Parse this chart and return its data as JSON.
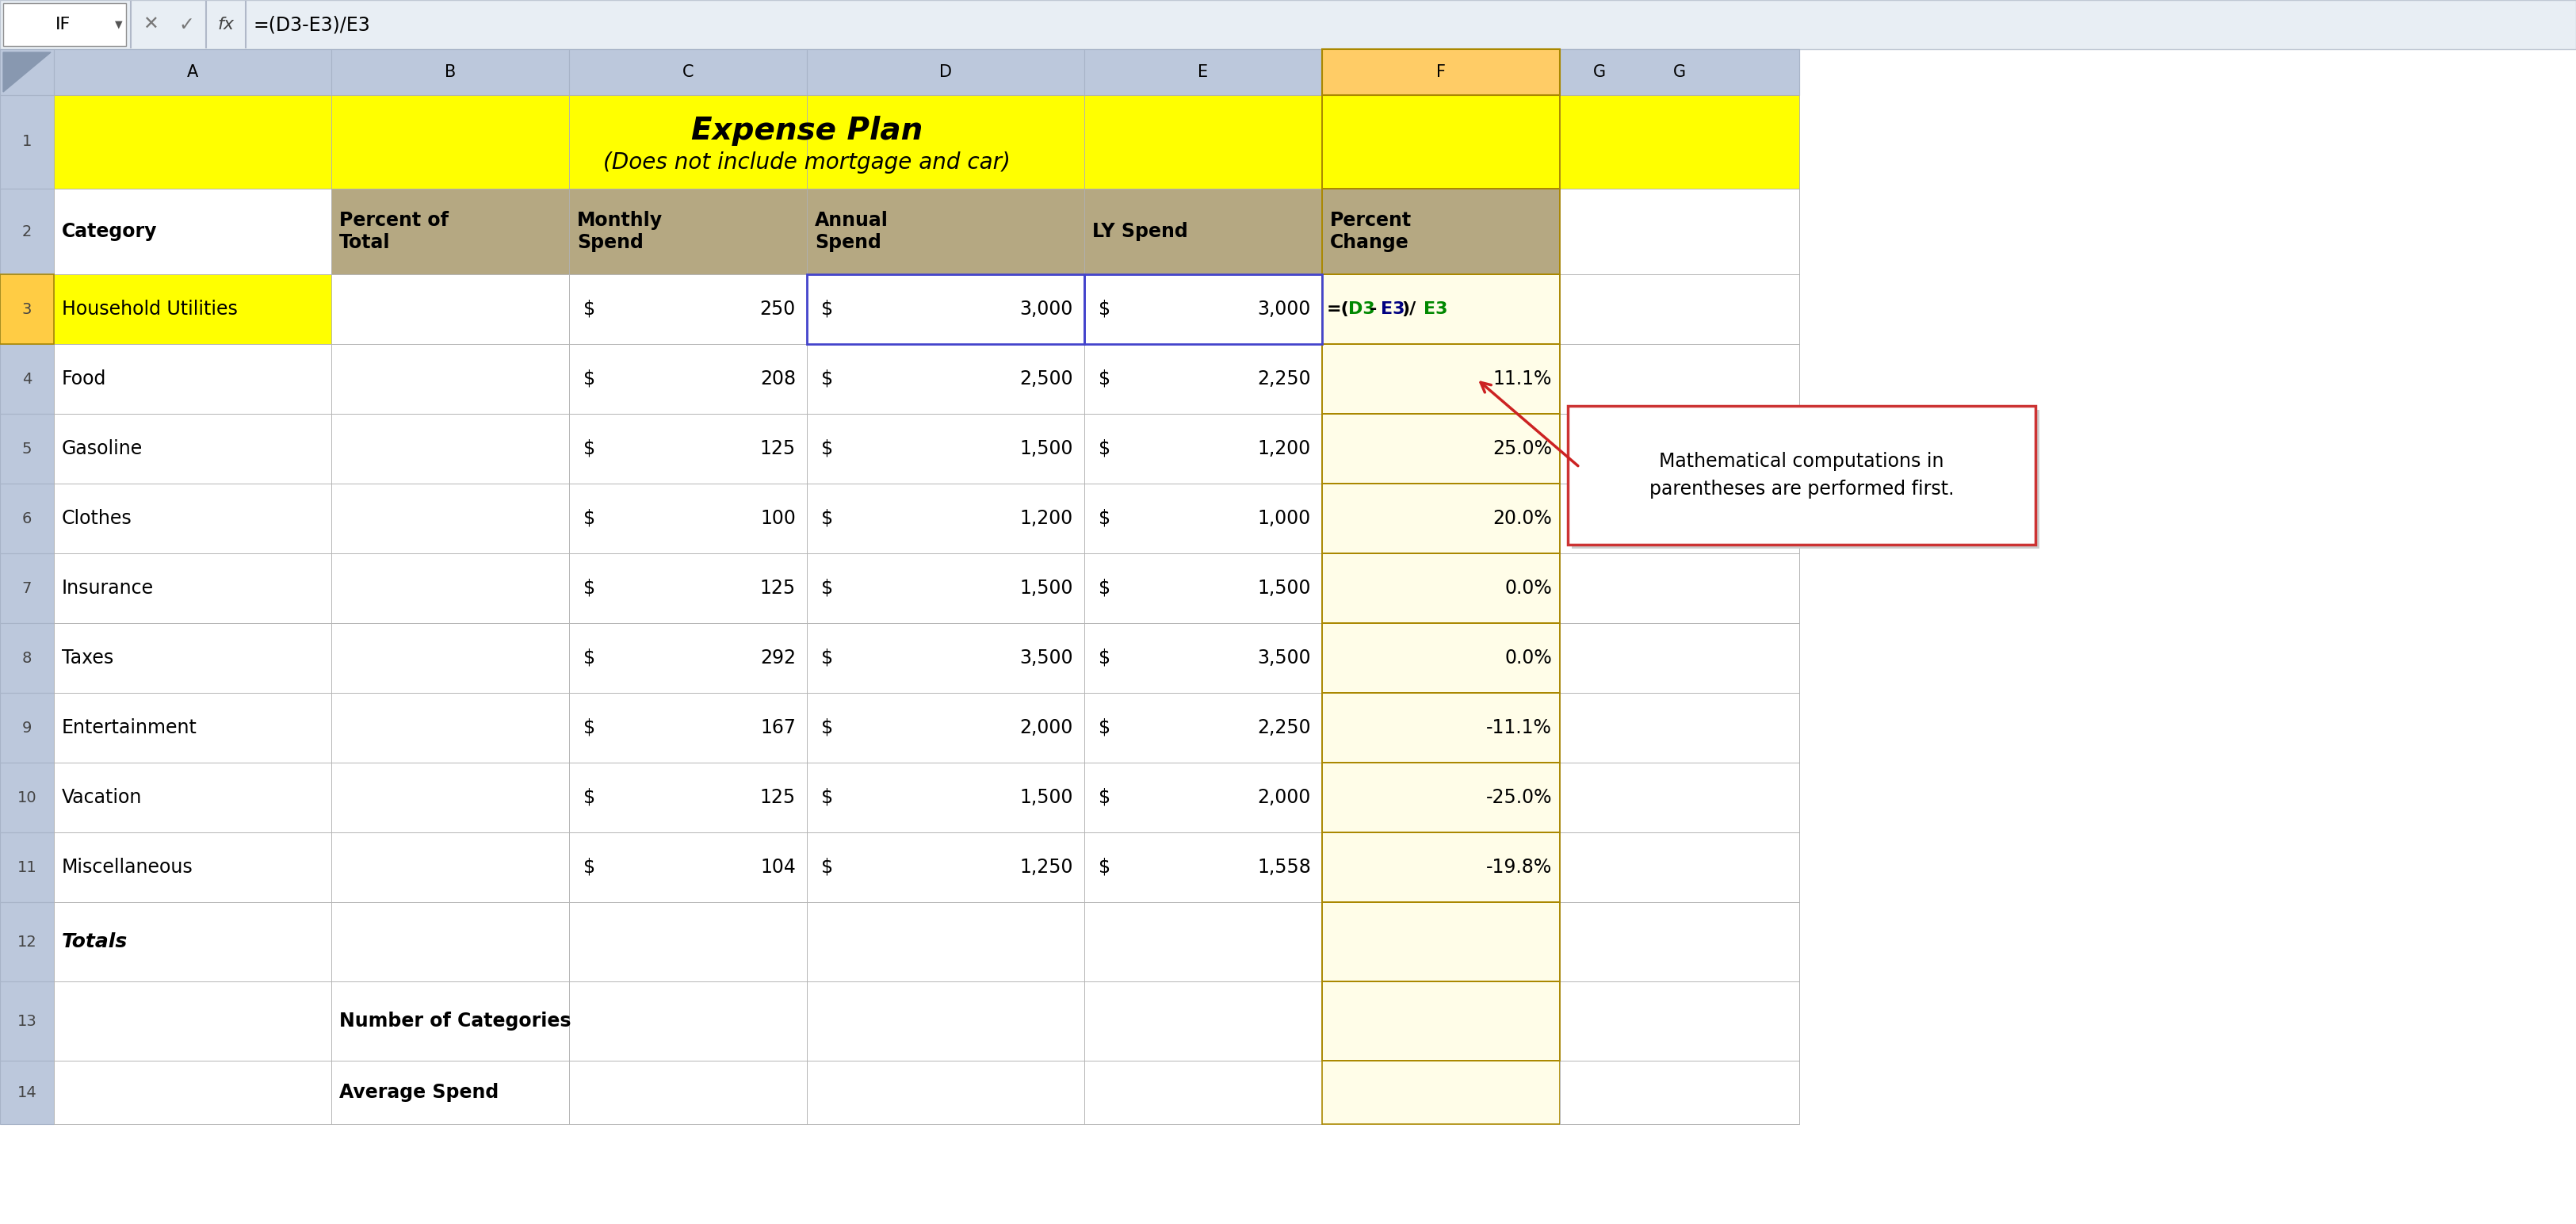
{
  "title_line1": "Expense Plan",
  "title_line2": "(Does not include mortgage and car)",
  "formula_bar_label": "IF",
  "formula_bar_text": "=(D3-E3)/E3",
  "col_letters": [
    "A",
    "B",
    "C",
    "D",
    "E",
    "F",
    "G"
  ],
  "headers_row2": [
    "Category",
    "Percent of\nTotal",
    "Monthly\nSpend",
    "Annual\nSpend",
    "LY Spend",
    "Percent\nChange"
  ],
  "categories": [
    "Household Utilities",
    "Food",
    "Gasoline",
    "Clothes",
    "Insurance",
    "Taxes",
    "Entertainment",
    "Vacation",
    "Miscellaneous"
  ],
  "monthly": [
    250,
    208,
    125,
    100,
    125,
    292,
    167,
    125,
    104
  ],
  "annual": [
    3000,
    2500,
    1500,
    1200,
    1500,
    3500,
    2000,
    1500,
    1250
  ],
  "ly_spend": [
    3000,
    2250,
    1200,
    1000,
    1500,
    3500,
    2250,
    2000,
    1558
  ],
  "pct_changes": [
    "=(D3-E3)/E3",
    "11.1%",
    "25.0%",
    "20.0%",
    "0.0%",
    "0.0%",
    "-11.1%",
    "-25.0%",
    "-19.8%"
  ],
  "annotation_text": "Mathematical computations in\nparentheses are performed first.",
  "col_bg_active": "#FFCC66",
  "col_header_bg": "#BCC8DC",
  "row_num_bg": "#BCC8DC",
  "row3_num_bg": "#FFCC44",
  "title_bg": "#FFFF00",
  "header_row_bg": "#B5A882",
  "row3_A_bg": "#FFFF00",
  "data_bg": "#FFFFFF",
  "F_col_data_bg": "#FFFDE8",
  "annotation_border": "#CC3333",
  "arrow_color": "#CC2222",
  "formula_color_D3": "#008800",
  "formula_color_E3a": "#000080",
  "formula_color_E3b": "#008800",
  "formula_default": "#000000"
}
